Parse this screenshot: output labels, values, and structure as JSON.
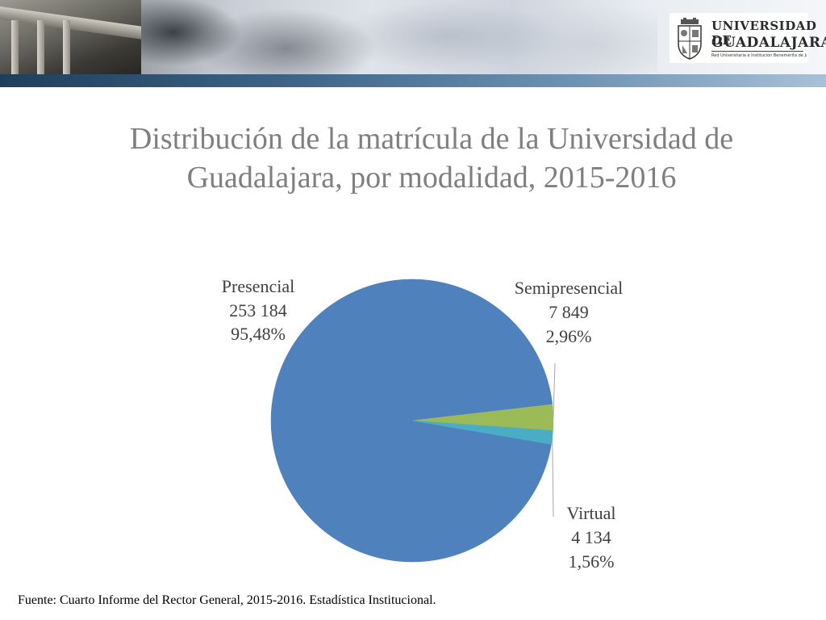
{
  "header": {
    "logo_line1": "UNIVERSIDAD DE",
    "logo_line2": "GUADALAJARA",
    "logo_subtitle": "Red Universitaria e Institución Benemérita de Jalisco"
  },
  "colors": {
    "presencial": "#4f81bd",
    "semipresencial": "#9bbb59",
    "virtual": "#4bacc6",
    "title": "#7f7f7f"
  },
  "chart_data": {
    "type": "pie",
    "title": "Distribución de la matrícula de la Universidad de Guadalajara, por modalidad, 2015-2016",
    "categories": [
      "Presencial",
      "Semipresencial",
      "Virtual"
    ],
    "values": [
      253184,
      7849,
      4134
    ],
    "value_labels": [
      "253 184",
      "7 849",
      "4 134"
    ],
    "percent_labels": [
      "95,48%",
      "2,96%",
      "1,56%"
    ],
    "percents": [
      95.48,
      2.96,
      1.56
    ],
    "legend": "none",
    "labels": "outside with leader lines"
  },
  "footer": {
    "source": "Fuente: Cuarto Informe del Rector General, 2015-2016.  Estadística Institucional."
  }
}
